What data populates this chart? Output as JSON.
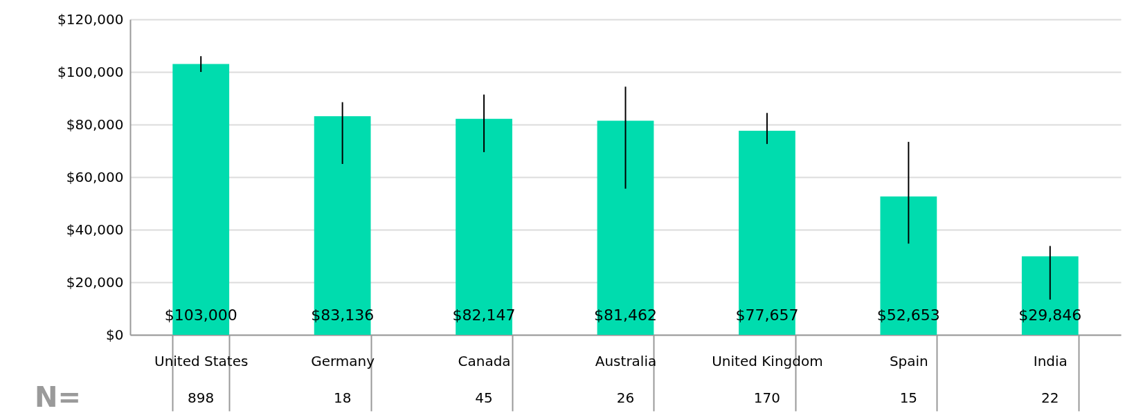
{
  "chart_data": {
    "type": "bar",
    "categories": [
      "United States",
      "Germany",
      "Canada",
      "Australia",
      "United Kingdom",
      "Spain",
      "India"
    ],
    "values": [
      103000,
      83136,
      82147,
      81462,
      77657,
      52653,
      29846
    ],
    "color": "#00dcae",
    "errors": [
      [
        100000,
        106000
      ],
      [
        65000,
        88500
      ],
      [
        69500,
        91400
      ],
      [
        55600,
        94400
      ],
      [
        72600,
        84400
      ],
      [
        34700,
        73400
      ],
      [
        13400,
        33800
      ]
    ],
    "value_labels": [
      "$103,000",
      "$83,136",
      "$82,147",
      "$81,462",
      "$77,657",
      "$52,653",
      "$29,846"
    ],
    "ylim": [
      0,
      120000
    ],
    "yticks": [
      {
        "value": 0,
        "label": "$0"
      },
      {
        "value": 20000,
        "label": "$20,000"
      },
      {
        "value": 40000,
        "label": "$40,000"
      },
      {
        "value": 60000,
        "label": "$60,000"
      },
      {
        "value": 80000,
        "label": "$80,000"
      },
      {
        "value": 100000,
        "label": "$100,000"
      },
      {
        "value": 120000,
        "label": "$120,000"
      }
    ],
    "grid": "y",
    "annotations": [
      "N=",
      "898",
      "18",
      "45",
      "26",
      "170",
      "15",
      "22"
    ]
  }
}
